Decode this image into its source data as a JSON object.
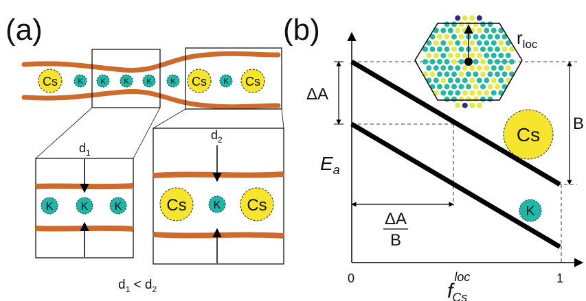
{
  "panel_a": {
    "label": "(a)",
    "ion_cs": "Cs",
    "ion_k": "K",
    "d1_label": "d",
    "d1_sub": "1",
    "d2_label": "d",
    "d2_sub": "2",
    "relation": {
      "d": "d",
      "s1": "1",
      "op": " < ",
      "s2": "2"
    }
  },
  "panel_b": {
    "label": "(b)",
    "ylabel": "E",
    "ylabel_sub": "a",
    "xlabel": "f",
    "xlabel_sub": "Cs",
    "xlabel_sup": "loc",
    "tick_0": "0",
    "tick_1": "1",
    "delta_a": "ΔA",
    "b_label": "B",
    "frac_num": "ΔA",
    "frac_den": "B",
    "rloc": "r",
    "rloc_sub": "loc",
    "legend_cs": "Cs",
    "legend_k": "K"
  },
  "colors": {
    "membrane": "#cc6b2c",
    "cs_fill": "#f6e52e",
    "k_fill": "#1fb7a8",
    "lattice_yellow": "#e6e84a",
    "lattice_teal": "#25b7a0",
    "lattice_navy": "#2d2b86",
    "line": "#000000"
  }
}
